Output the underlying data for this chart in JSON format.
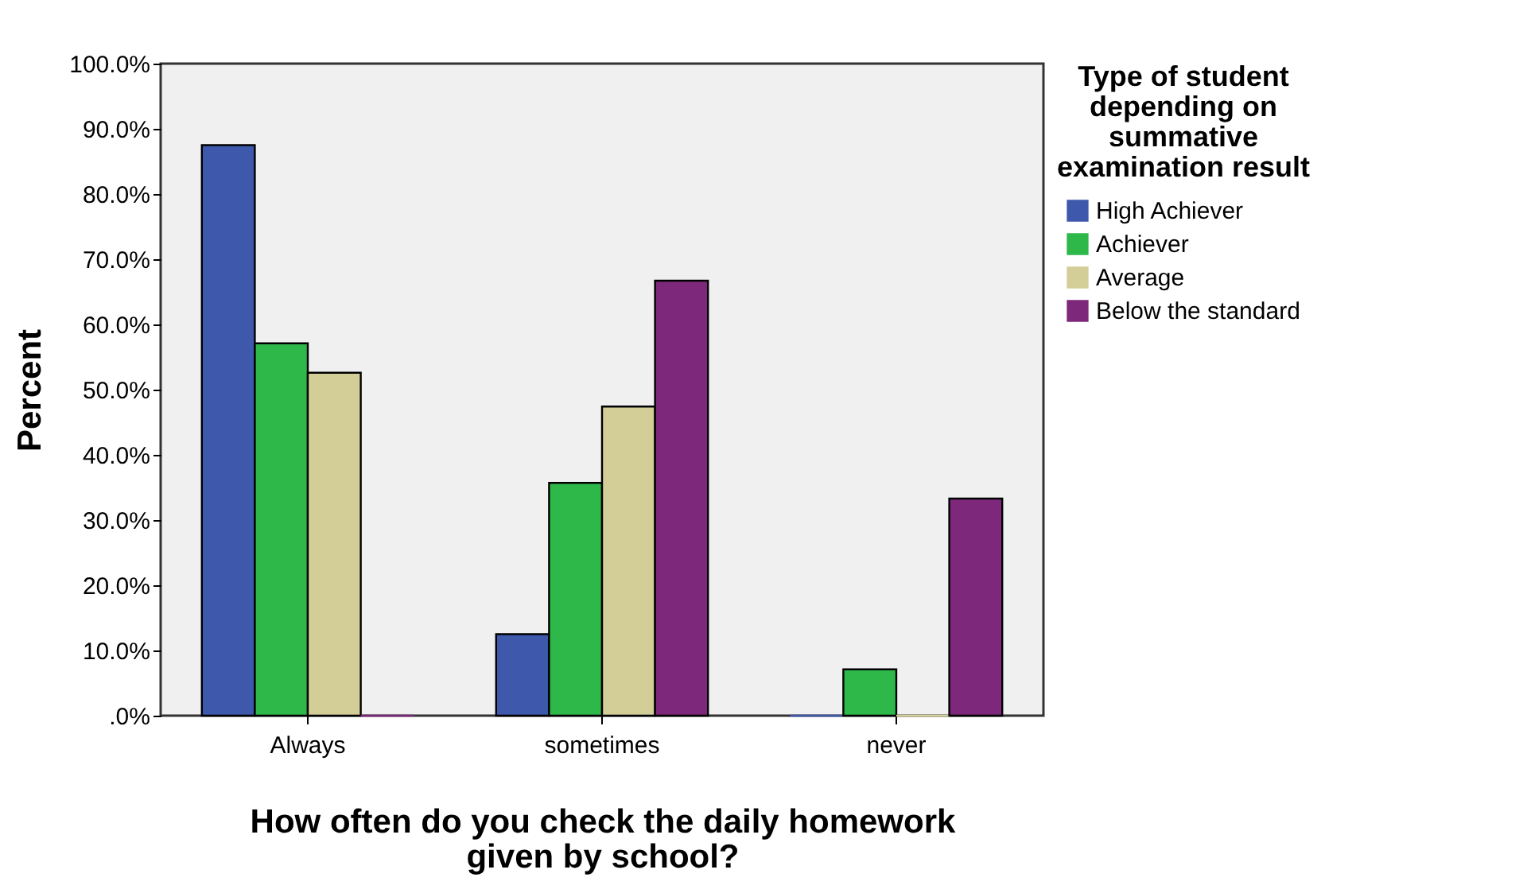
{
  "chart_data": {
    "type": "bar",
    "xlabel": "How often do you check the daily homework given by school?",
    "ylabel": "Percent",
    "legend_title": "Type of student depending on summative examination result",
    "categories": [
      "Always",
      "sometimes",
      "never"
    ],
    "series": [
      {
        "name": "High Achiever",
        "color": "#3e58ac",
        "values": [
          87.5,
          12.5,
          0
        ]
      },
      {
        "name": "Achiever",
        "color": "#2fb84a",
        "values": [
          57.1,
          35.7,
          7.1
        ]
      },
      {
        "name": "Average",
        "color": "#d3ce97",
        "values": [
          52.6,
          47.4,
          0
        ]
      },
      {
        "name": "Below the standard",
        "color": "#7e287b",
        "values": [
          0,
          66.7,
          33.3
        ]
      }
    ],
    "ylim": [
      0,
      100
    ],
    "yticks": [
      {
        "value": 0,
        "label": ".0%"
      },
      {
        "value": 10,
        "label": "10.0%"
      },
      {
        "value": 20,
        "label": "20.0%"
      },
      {
        "value": 30,
        "label": "30.0%"
      },
      {
        "value": 40,
        "label": "40.0%"
      },
      {
        "value": 50,
        "label": "50.0%"
      },
      {
        "value": 60,
        "label": "60.0%"
      },
      {
        "value": 70,
        "label": "70.0%"
      },
      {
        "value": 80,
        "label": "80.0%"
      },
      {
        "value": 90,
        "label": "90.0%"
      },
      {
        "value": 100,
        "label": "100.0%"
      }
    ],
    "legend": "right"
  }
}
